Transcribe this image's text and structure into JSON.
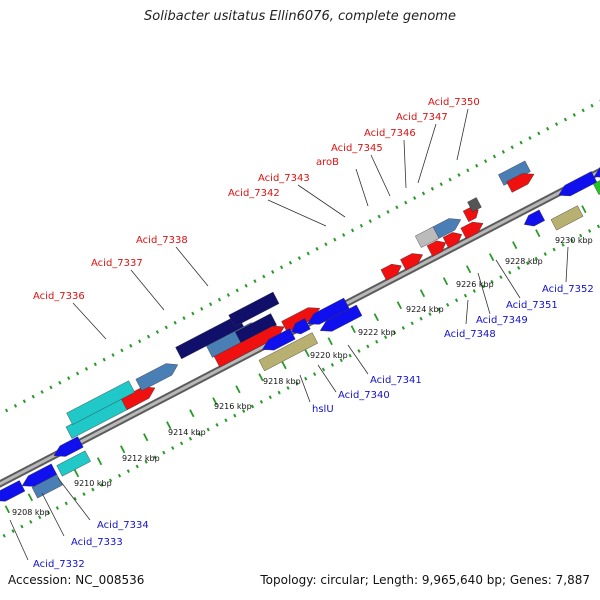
{
  "title": "Solibacter usitatus Ellin6076, complete genome",
  "footer": {
    "accession": "Accession: NC_008536",
    "summary": "Topology: circular; Length: 9,965,640 bp; Genes: 7,887"
  },
  "colors": {
    "backbone": "#808080",
    "dots": "#2a9a2a",
    "label_upper": "#dd1111",
    "label_lower": "#1111cc",
    "forward_cds": "#f01010",
    "reverse_cds": "#1010ee",
    "rna": "#23c423",
    "feature_steel": "#4a7fb5",
    "feature_navy": "#10106a",
    "feature_cyan": "#20c8c8",
    "feature_khaki": "#b8b070",
    "feature_grey": "#bbbbbb"
  },
  "scale_ticks": [
    "9208 kbp",
    "9210 kbp",
    "9212 kbp",
    "9214 kbp",
    "9216 kbp",
    "9218 kbp",
    "9220 kbp",
    "9222 kbp",
    "9224 kbp",
    "9226 kbp",
    "9228 kbp",
    "9230 kbp"
  ],
  "upper_labels": [
    "Acid_7336",
    "Acid_7337",
    "Acid_7338",
    "Acid_7342",
    "Acid_7343",
    "aroB",
    "Acid_7345",
    "Acid_7346",
    "Acid_7347",
    "Acid_7350"
  ],
  "lower_labels": [
    "Acid_7332",
    "Acid_7333",
    "Acid_7334",
    "hslU",
    "Acid_7340",
    "Acid_7341",
    "Acid_7348",
    "Acid_7349",
    "Acid_7351",
    "Acid_7352"
  ]
}
